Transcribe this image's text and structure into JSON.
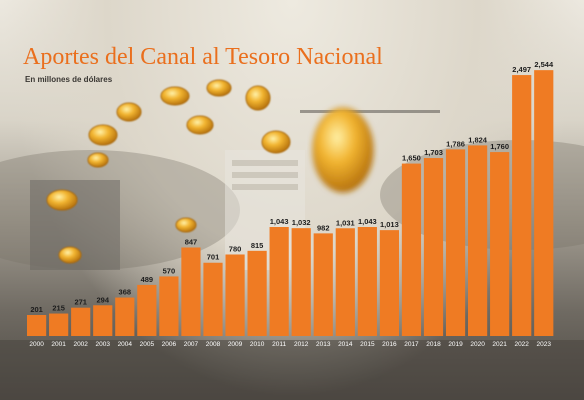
{
  "title": "Aportes del Canal al Tesoro Nacional",
  "subtitle": "En millones de dólares",
  "colors": {
    "bar": "#ef7b23",
    "title": "#ea6f1d",
    "value_label": "#1c1c1c",
    "year_label": "#ffffff",
    "coin": "#e8a317"
  },
  "decorations": [
    "coin-icon",
    "canal-ship-background"
  ],
  "chart_data": {
    "type": "bar",
    "title": "Aportes del Canal al Tesoro Nacional",
    "subtitle": "En millones de dólares",
    "xlabel": "",
    "ylabel": "",
    "ylim": [
      0,
      2700
    ],
    "grid": false,
    "legend": "none",
    "categories": [
      "2000",
      "2001",
      "2002",
      "2003",
      "2004",
      "2005",
      "2006",
      "2007",
      "2008",
      "2009",
      "2010",
      "2011",
      "2012",
      "2013",
      "2014",
      "2015",
      "2016",
      "2017",
      "2018",
      "2019",
      "2020",
      "2021",
      "2022",
      "2023"
    ],
    "values": [
      201,
      215,
      271,
      294,
      368,
      489,
      570,
      847,
      701,
      780,
      815,
      1043,
      1032,
      982,
      1031,
      1043,
      1013,
      1650,
      1703,
      1786,
      1824,
      1760,
      2497,
      2544
    ],
    "value_labels": [
      "201",
      "215",
      "271",
      "294",
      "368",
      "489",
      "570",
      "847",
      "701",
      "780",
      "815",
      "1,043",
      "1,032",
      "982",
      "1,031",
      "1,043",
      "1,013",
      "1,650",
      "1,703",
      "1,786",
      "1,824",
      "1,760",
      "2,497",
      "2,544"
    ]
  }
}
